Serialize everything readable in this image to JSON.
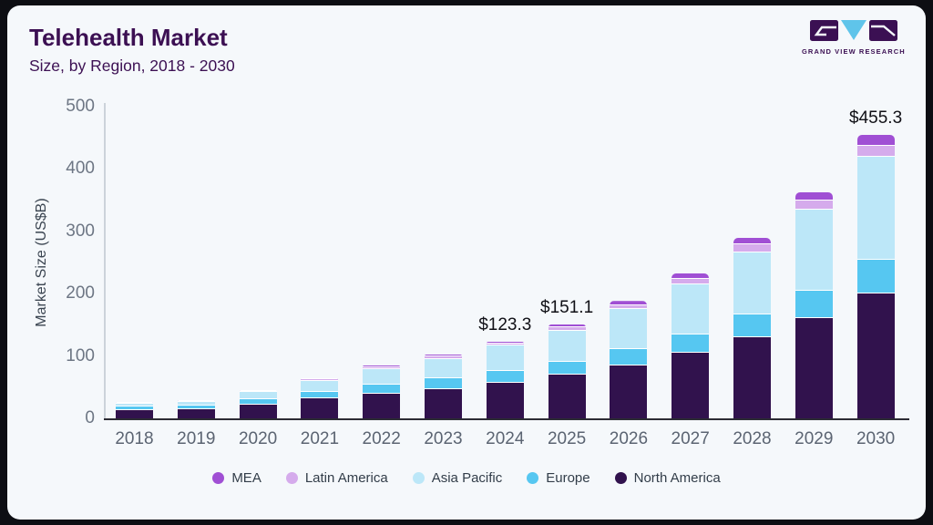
{
  "header": {
    "title": "Telehealth Market",
    "subtitle": "Size, by Region, 2018 - 2030"
  },
  "logo": {
    "text": "GRAND VIEW RESEARCH",
    "brand_dark": "#3b1053",
    "brand_cyan": "#5fc4ea"
  },
  "chart_data": {
    "type": "bar",
    "stacked": true,
    "title": "Telehealth Market Size, by Region, 2018 - 2030",
    "ylabel": "Market Size (US$B)",
    "ylim": [
      0,
      500
    ],
    "yticks": [
      0,
      100,
      200,
      300,
      400,
      500
    ],
    "grid": false,
    "legend_position": "bottom",
    "categories": [
      "2018",
      "2019",
      "2020",
      "2021",
      "2022",
      "2023",
      "2024",
      "2025",
      "2026",
      "2027",
      "2028",
      "2029",
      "2030"
    ],
    "series": [
      {
        "name": "North America",
        "color": "#31124d",
        "values": [
          13.4,
          14.0,
          22.5,
          32.8,
          40.0,
          47.5,
          57.5,
          70.0,
          85.5,
          105.0,
          129.5,
          161.0,
          200.5
        ]
      },
      {
        "name": "Europe",
        "color": "#56c7f1",
        "values": [
          5.2,
          6.6,
          8.5,
          9.8,
          13.8,
          17.5,
          18.5,
          21.0,
          25.0,
          30.0,
          36.5,
          43.0,
          54.5
        ]
      },
      {
        "name": "Asia Pacific",
        "color": "#bce7f8",
        "values": [
          5.0,
          6.3,
          11.5,
          17.1,
          25.8,
          30.5,
          40.5,
          48.8,
          64.5,
          79.5,
          100.5,
          130.5,
          164.0
        ]
      },
      {
        "name": "Latin America",
        "color": "#d5abec",
        "values": [
          0.9,
          0.8,
          1.7,
          2.6,
          3.0,
          3.5,
          3.4,
          5.8,
          6.4,
          8.5,
          12.5,
          14.5,
          18.3
        ]
      },
      {
        "name": "MEA",
        "color": "#a04fd4",
        "values": [
          0.6,
          0.6,
          1.3,
          2.4,
          2.9,
          3.5,
          3.4,
          5.5,
          7.0,
          9.0,
          11.0,
          13.5,
          18.0
        ]
      }
    ],
    "totals": [
      25.1,
      28.3,
      45.5,
      64.7,
      85.5,
      102.5,
      123.3,
      151.1,
      188.4,
      232.0,
      290.0,
      362.5,
      455.3
    ],
    "annotations": [
      {
        "category": "2024",
        "label": "$123.3"
      },
      {
        "category": "2025",
        "label": "$151.1"
      },
      {
        "category": "2030",
        "label": "$455.3"
      }
    ],
    "legend_order": [
      "MEA",
      "Latin America",
      "Asia Pacific",
      "Europe",
      "North America"
    ]
  }
}
